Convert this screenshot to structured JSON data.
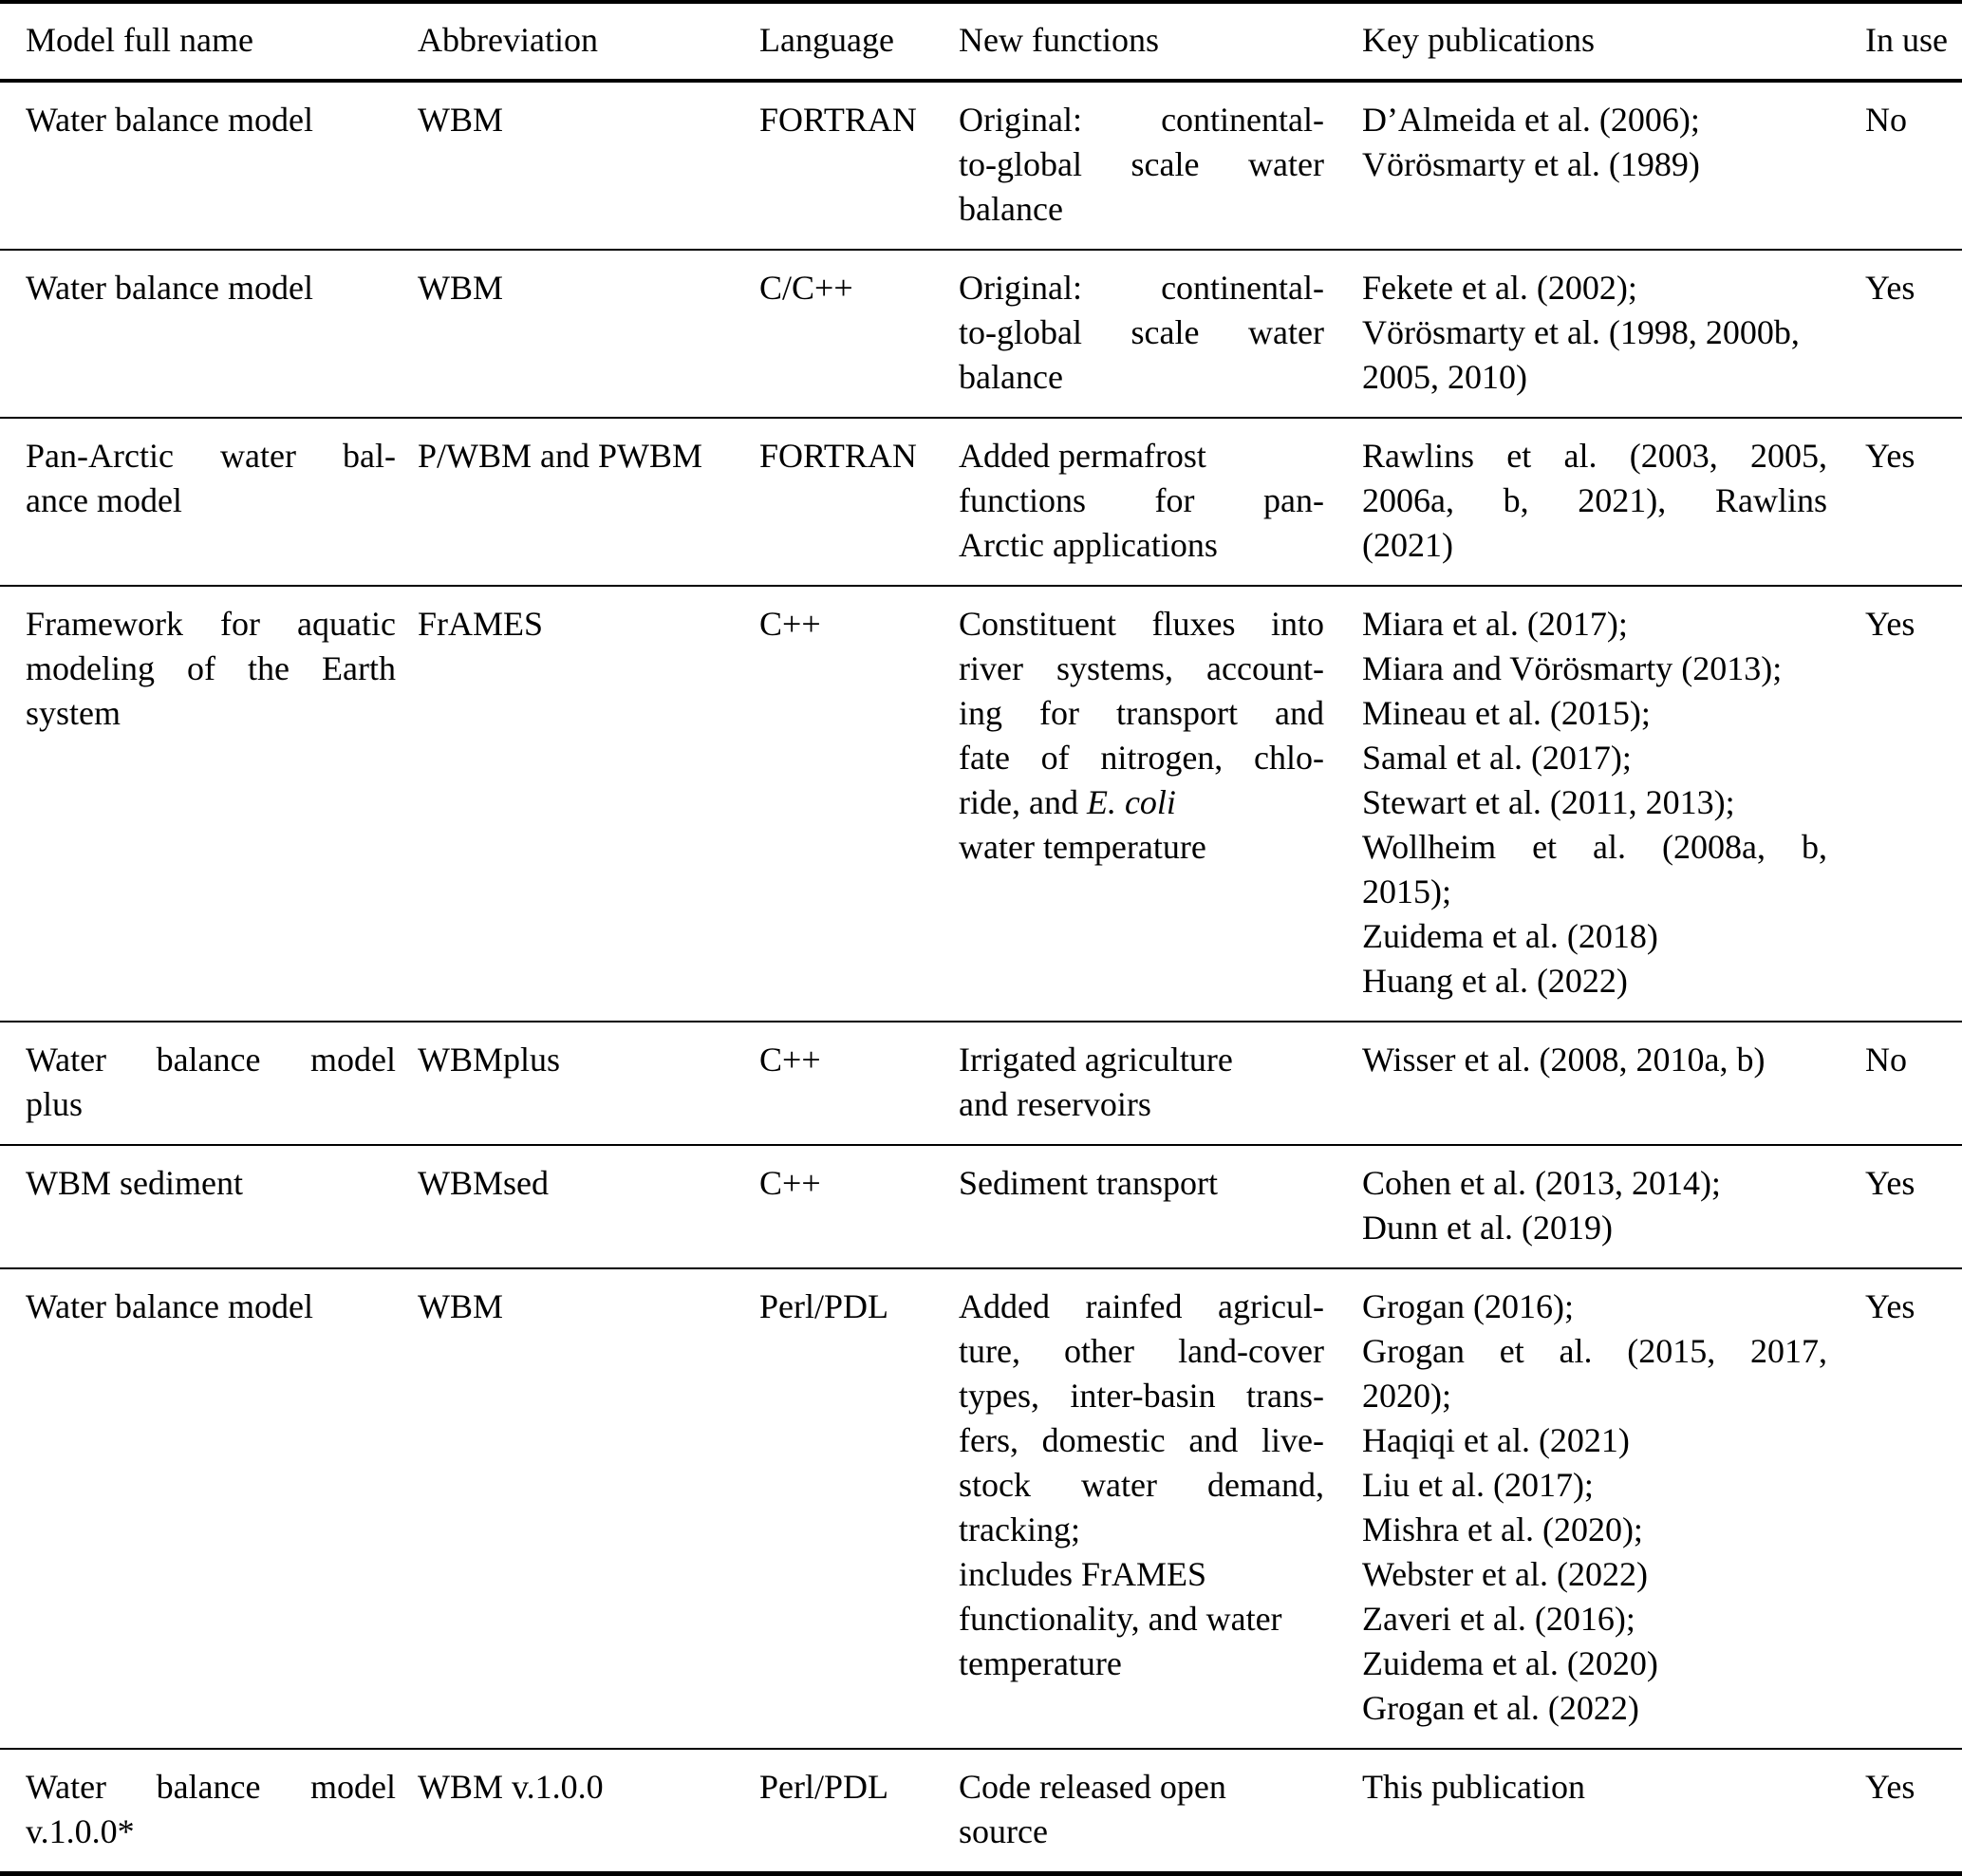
{
  "table": {
    "columns": [
      {
        "label": "Model full name"
      },
      {
        "label": "Abbreviation"
      },
      {
        "label": "Language"
      },
      {
        "label": "New functions"
      },
      {
        "label": "Key publications"
      },
      {
        "label": "In use"
      }
    ],
    "rows": [
      {
        "cells": [
          {
            "lines": [
              "Water balance model"
            ]
          },
          {
            "lines": [
              "WBM"
            ]
          },
          {
            "lines": [
              "FORTRAN"
            ]
          },
          {
            "lines": [
              {
                "j": "Original: continental-"
              },
              {
                "j": "to-global scale water"
              },
              "balance"
            ]
          },
          {
            "lines": [
              "D’Almeida et al. (2006);",
              "Vörösmarty et al. (1989)"
            ]
          },
          {
            "lines": [
              "No"
            ]
          }
        ]
      },
      {
        "cells": [
          {
            "lines": [
              "Water balance model"
            ]
          },
          {
            "lines": [
              "WBM"
            ]
          },
          {
            "lines": [
              "C/C++"
            ]
          },
          {
            "lines": [
              {
                "j": "Original: continental-"
              },
              {
                "j": "to-global scale water"
              },
              "balance"
            ]
          },
          {
            "lines": [
              "Fekete et al. (2002);",
              "Vörösmarty et al. (1998, 2000b,",
              "2005, 2010)"
            ]
          },
          {
            "lines": [
              "Yes"
            ]
          }
        ]
      },
      {
        "cells": [
          {
            "lines": [
              {
                "j": "Pan-Arctic water bal-"
              },
              "ance model"
            ]
          },
          {
            "lines": [
              "P/WBM and PWBM"
            ]
          },
          {
            "lines": [
              "FORTRAN"
            ]
          },
          {
            "lines": [
              "Added permafrost",
              {
                "j": "functions for pan-"
              },
              "Arctic applications"
            ]
          },
          {
            "lines": [
              {
                "j": "Rawlins et al. (2003, 2005,"
              },
              {
                "j": "2006a, b, 2021), Rawlins"
              },
              "(2021)"
            ]
          },
          {
            "lines": [
              "Yes"
            ]
          }
        ]
      },
      {
        "cells": [
          {
            "lines": [
              {
                "j": "Framework for aquatic"
              },
              {
                "j": "modeling of the Earth"
              },
              "system"
            ]
          },
          {
            "lines": [
              "FrAMES"
            ]
          },
          {
            "lines": [
              "C++"
            ]
          },
          {
            "lines": [
              {
                "j": "Constituent fluxes into"
              },
              {
                "j": "river systems, account-"
              },
              {
                "j": "ing for transport and"
              },
              {
                "j": "fate of nitrogen, chlo-"
              },
              {
                "parts": [
                  {
                    "t": "ride, and "
                  },
                  {
                    "t": "E. coli",
                    "i": true
                  }
                ]
              },
              "water temperature"
            ]
          },
          {
            "lines": [
              "Miara et al. (2017);",
              "Miara and Vörösmarty (2013);",
              "Mineau et al. (2015);",
              "Samal et al. (2017);",
              "Stewart et al. (2011, 2013);",
              {
                "j": "Wollheim et al. (2008a, b,"
              },
              "2015);",
              "Zuidema et al. (2018)",
              "Huang et al. (2022)"
            ]
          },
          {
            "lines": [
              "Yes"
            ]
          }
        ]
      },
      {
        "cells": [
          {
            "lines": [
              {
                "j": "Water balance model"
              },
              "plus"
            ]
          },
          {
            "lines": [
              "WBMplus"
            ]
          },
          {
            "lines": [
              "C++"
            ]
          },
          {
            "lines": [
              "Irrigated agriculture",
              "and reservoirs"
            ]
          },
          {
            "lines": [
              "Wisser et al. (2008, 2010a, b)"
            ]
          },
          {
            "lines": [
              "No"
            ]
          }
        ]
      },
      {
        "cells": [
          {
            "lines": [
              "WBM sediment"
            ]
          },
          {
            "lines": [
              "WBMsed"
            ]
          },
          {
            "lines": [
              "C++"
            ]
          },
          {
            "lines": [
              "Sediment transport"
            ]
          },
          {
            "lines": [
              "Cohen et al. (2013, 2014);",
              "Dunn et al. (2019)"
            ]
          },
          {
            "lines": [
              "Yes"
            ]
          }
        ]
      },
      {
        "cells": [
          {
            "lines": [
              "Water balance model"
            ]
          },
          {
            "lines": [
              "WBM"
            ]
          },
          {
            "lines": [
              "Perl/PDL"
            ]
          },
          {
            "lines": [
              {
                "j": "Added rainfed agricul-"
              },
              {
                "j": "ture, other land-cover"
              },
              {
                "j": "types, inter-basin trans-"
              },
              {
                "j": "fers, domestic and live-"
              },
              {
                "j": "stock water demand,"
              },
              "tracking;",
              "includes FrAMES",
              "functionality, and water",
              "temperature"
            ]
          },
          {
            "lines": [
              "Grogan (2016);",
              {
                "j": "Grogan et al. (2015, 2017,"
              },
              "2020);",
              "Haqiqi et al. (2021)",
              "Liu et al. (2017);",
              "Mishra et al. (2020);",
              "Webster et al. (2022)",
              "Zaveri et al. (2016);",
              "Zuidema et al. (2020)",
              "Grogan et al. (2022)"
            ]
          },
          {
            "lines": [
              "Yes"
            ]
          }
        ]
      },
      {
        "cells": [
          {
            "lines": [
              {
                "j": "Water balance model"
              },
              "v.1.0.0*"
            ]
          },
          {
            "lines": [
              "WBM v.1.0.0"
            ]
          },
          {
            "lines": [
              "Perl/PDL"
            ]
          },
          {
            "lines": [
              "Code released open",
              "source"
            ]
          },
          {
            "lines": [
              "This publication"
            ]
          },
          {
            "lines": [
              "Yes"
            ]
          }
        ]
      }
    ]
  }
}
